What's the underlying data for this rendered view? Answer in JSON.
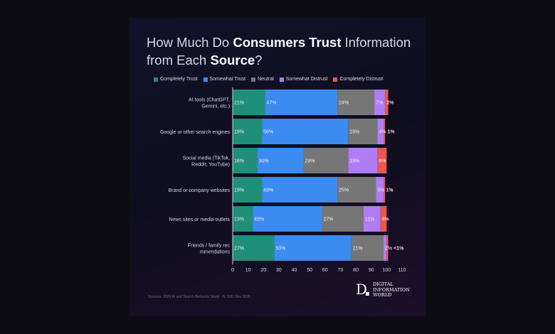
{
  "chart_data": {
    "type": "bar",
    "stacked": true,
    "orientation": "horizontal",
    "title_parts": [
      "How Much Do ",
      "Consumers Trust",
      " Information",
      "from Each ",
      "Source",
      "?"
    ],
    "categories": [
      "AI tools (ChatGPT, Gemini, etc.)",
      "Google or other search engines",
      "Social media (TikTok, Reddit, YouTube)",
      "Brand or company websites",
      "News sites or media outlets",
      "Friends / family recommendations"
    ],
    "series": [
      {
        "name": "Completely Trust",
        "color": "#1f8f78",
        "values": [
          21,
          19,
          16,
          19,
          13,
          27
        ]
      },
      {
        "name": "Somewhat Trust",
        "color": "#3b8bf0",
        "values": [
          47,
          56,
          30,
          49,
          45,
          50
        ]
      },
      {
        "name": "Neutral",
        "color": "#767676",
        "values": [
          24,
          19,
          29,
          25,
          27,
          21
        ]
      },
      {
        "name": "Somewhat Distrust",
        "color": "#b07cf5",
        "values": [
          7,
          4,
          19,
          5,
          11,
          2
        ]
      },
      {
        "name": "Completely Distrust",
        "color": "#e9574f",
        "values": [
          2,
          1,
          6,
          1,
          4,
          1
        ]
      }
    ],
    "data_labels": [
      [
        "21%",
        "47%",
        "24%",
        "7%",
        "2%"
      ],
      [
        "19%",
        "56%",
        "19%",
        "4%",
        "1%"
      ],
      [
        "16%",
        "30%",
        "29%",
        "19%",
        "6%"
      ],
      [
        "19%",
        "49%",
        "25%",
        "5%",
        "1%"
      ],
      [
        "13%",
        "45%",
        "27%",
        "11%",
        "4%"
      ],
      [
        "27%",
        "50%",
        "21%",
        "2%",
        "<1%"
      ]
    ],
    "xlim": [
      0,
      110
    ],
    "xticks": [
      0,
      10,
      20,
      30,
      40,
      50,
      60,
      70,
      80,
      90,
      100,
      110
    ],
    "legend_position": "top",
    "source": "Sources: 2026 AI and Search Behavior Study - N: 500, Nov 2026",
    "logo": "DIGITAL INFORMATION WORLD"
  },
  "logo_lines": [
    "DIGITAL",
    "INFORMATION",
    "WORLD"
  ]
}
